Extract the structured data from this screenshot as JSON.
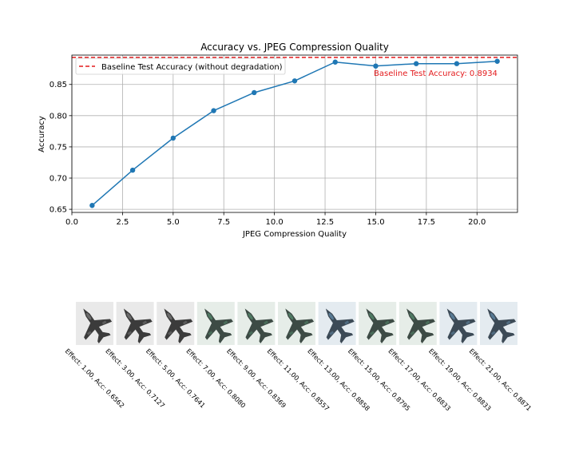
{
  "chart_data": {
    "type": "line",
    "title": "Accuracy vs. JPEG Compression Quality",
    "xlabel": "JPEG Compression Quality",
    "ylabel": "Accuracy",
    "xlim": [
      0,
      22
    ],
    "ylim": [
      0.645,
      0.897
    ],
    "xticks": [
      "0.0",
      "2.5",
      "5.0",
      "7.5",
      "10.0",
      "12.5",
      "15.0",
      "17.5",
      "20.0"
    ],
    "xtick_values": [
      0,
      2.5,
      5,
      7.5,
      10,
      12.5,
      15,
      17.5,
      20
    ],
    "yticks": [
      "0.65",
      "0.70",
      "0.75",
      "0.80",
      "0.85"
    ],
    "ytick_values": [
      0.65,
      0.7,
      0.75,
      0.8,
      0.85
    ],
    "grid": true,
    "series": [
      {
        "x": [
          1,
          3,
          5,
          7,
          9,
          11,
          13,
          15,
          17,
          19,
          21
        ],
        "y": [
          0.6562,
          0.7127,
          0.7641,
          0.808,
          0.8369,
          0.8557,
          0.8858,
          0.8795,
          0.8833,
          0.8833,
          0.8871
        ],
        "color": "#1f77b4"
      }
    ],
    "baseline": {
      "value": 0.8934,
      "color": "#e31a1c",
      "legend_label": "Baseline Test Accuracy (without degradation)",
      "annotation": "Baseline Test Accuracy: 0.8934"
    },
    "legend_position": "upper-left"
  },
  "thumbnails": [
    {
      "caption": "Effect: 1.00, Acc: 0.6562",
      "palette": "gray"
    },
    {
      "caption": "Effect: 3.00, Acc: 0.7127",
      "palette": "gray"
    },
    {
      "caption": "Effect: 5.00, Acc: 0.7641",
      "palette": "gray"
    },
    {
      "caption": "Effect: 7.00, Acc: 0.8080",
      "palette": "green"
    },
    {
      "caption": "Effect: 9.00, Acc: 0.8369",
      "palette": "green"
    },
    {
      "caption": "Effect: 11.00, Acc: 0.8557",
      "palette": "green"
    },
    {
      "caption": "Effect: 13.00, Acc: 0.8858",
      "palette": "blue"
    },
    {
      "caption": "Effect: 15.00, Acc: 0.8795",
      "palette": "green"
    },
    {
      "caption": "Effect: 17.00, Acc: 0.8833",
      "palette": "green"
    },
    {
      "caption": "Effect: 19.00, Acc: 0.8833",
      "palette": "blue"
    },
    {
      "caption": "Effect: 21.00, Acc: 0.8871",
      "palette": "blue"
    }
  ],
  "colors": {
    "gray": {
      "bg": "#e9e9e9",
      "plane": "#3b3b3b",
      "accent": "#6a6a6a"
    },
    "green": {
      "bg": "#e6ede8",
      "plane": "#3d4b45",
      "accent": "#4f7a63"
    },
    "blue": {
      "bg": "#e4ebf0",
      "plane": "#3c4a56",
      "accent": "#587a94"
    }
  }
}
